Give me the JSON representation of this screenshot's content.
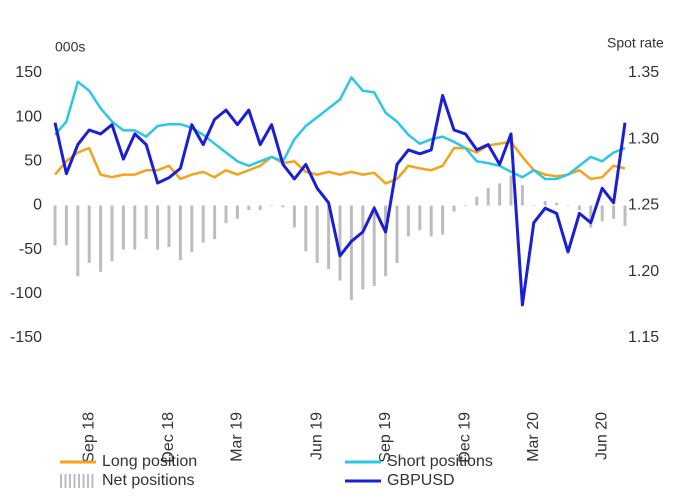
{
  "chart_data": {
    "type": "line",
    "y_label": "000s",
    "y2_label": "Spot rate",
    "categories": [
      null,
      null,
      null,
      "Sep 18",
      null,
      null,
      null,
      null,
      null,
      null,
      "Dec 18",
      null,
      null,
      null,
      null,
      null,
      "Mar 19",
      null,
      null,
      null,
      null,
      null,
      null,
      "Jun 19",
      null,
      null,
      null,
      null,
      null,
      "Sep 19",
      null,
      null,
      null,
      null,
      null,
      null,
      "Dec 19",
      null,
      null,
      null,
      null,
      null,
      "Mar 20",
      null,
      null,
      null,
      null,
      null,
      "Jun 20",
      null,
      null
    ],
    "ylim": [
      -150,
      150
    ],
    "yticks": [
      150,
      100,
      50,
      0,
      -50,
      -100,
      -150
    ],
    "y2lim": [
      1.15,
      1.35
    ],
    "y2ticks": [
      1.35,
      {
        "value": 1.3,
        "label": "1.30"
      },
      1.25,
      {
        "value": 1.2,
        "label": "1.20"
      },
      1.15
    ],
    "grid": false,
    "series": [
      {
        "name": "Long position",
        "color": "#f5a31a",
        "values": [
          35,
          50,
          60,
          65,
          35,
          32,
          35,
          35,
          40,
          40,
          45,
          30,
          35,
          38,
          32,
          40,
          35,
          40,
          45,
          55,
          48,
          50,
          38,
          35,
          38,
          35,
          38,
          35,
          37,
          25,
          30,
          45,
          42,
          40,
          45,
          65,
          65,
          60,
          68,
          70,
          72,
          55,
          40,
          35,
          33,
          35,
          40,
          30,
          32,
          45,
          42
        ]
      },
      {
        "name": "Short positions",
        "color": "#2cc6e8",
        "values": [
          80,
          95,
          140,
          130,
          110,
          95,
          85,
          85,
          78,
          90,
          92,
          92,
          88,
          80,
          70,
          60,
          50,
          45,
          50,
          55,
          50,
          75,
          90,
          100,
          110,
          120,
          145,
          130,
          128,
          105,
          95,
          80,
          70,
          75,
          78,
          72,
          65,
          50,
          48,
          45,
          38,
          32,
          40,
          30,
          30,
          35,
          45,
          55,
          50,
          60,
          65
        ]
      },
      {
        "name": "Net positions",
        "type": "bar",
        "color": "#bdbdbd",
        "values": [
          -45,
          -45,
          -80,
          -65,
          -75,
          -63,
          -50,
          -50,
          -38,
          -50,
          -47,
          -62,
          -53,
          -42,
          -38,
          -20,
          -15,
          -5,
          -5,
          0,
          -2,
          -25,
          -52,
          -65,
          -72,
          -85,
          -107,
          -95,
          -91,
          -80,
          -65,
          -35,
          -28,
          -35,
          -33,
          -7,
          0,
          10,
          20,
          25,
          34,
          23,
          0,
          5,
          3,
          0,
          -5,
          -25,
          -18,
          -15,
          -23
        ]
      },
      {
        "name": "GBPUSD",
        "axis": "y2",
        "color": "#1a1fd6",
        "values": [
          1.3125,
          1.274,
          1.296,
          1.307,
          1.304,
          1.311,
          1.285,
          1.304,
          1.296,
          1.267,
          1.271,
          1.278,
          1.311,
          1.296,
          1.315,
          1.322,
          1.311,
          1.322,
          1.296,
          1.311,
          1.281,
          1.27,
          1.281,
          1.263,
          1.252,
          1.212,
          1.223,
          1.23,
          1.248,
          1.23,
          1.281,
          1.292,
          1.289,
          1.292,
          1.333,
          1.307,
          1.304,
          1.292,
          1.296,
          1.281,
          1.304,
          1.175,
          1.237,
          1.248,
          1.244,
          1.215,
          1.244,
          1.237,
          1.263,
          1.252,
          1.3125
        ]
      }
    ]
  }
}
